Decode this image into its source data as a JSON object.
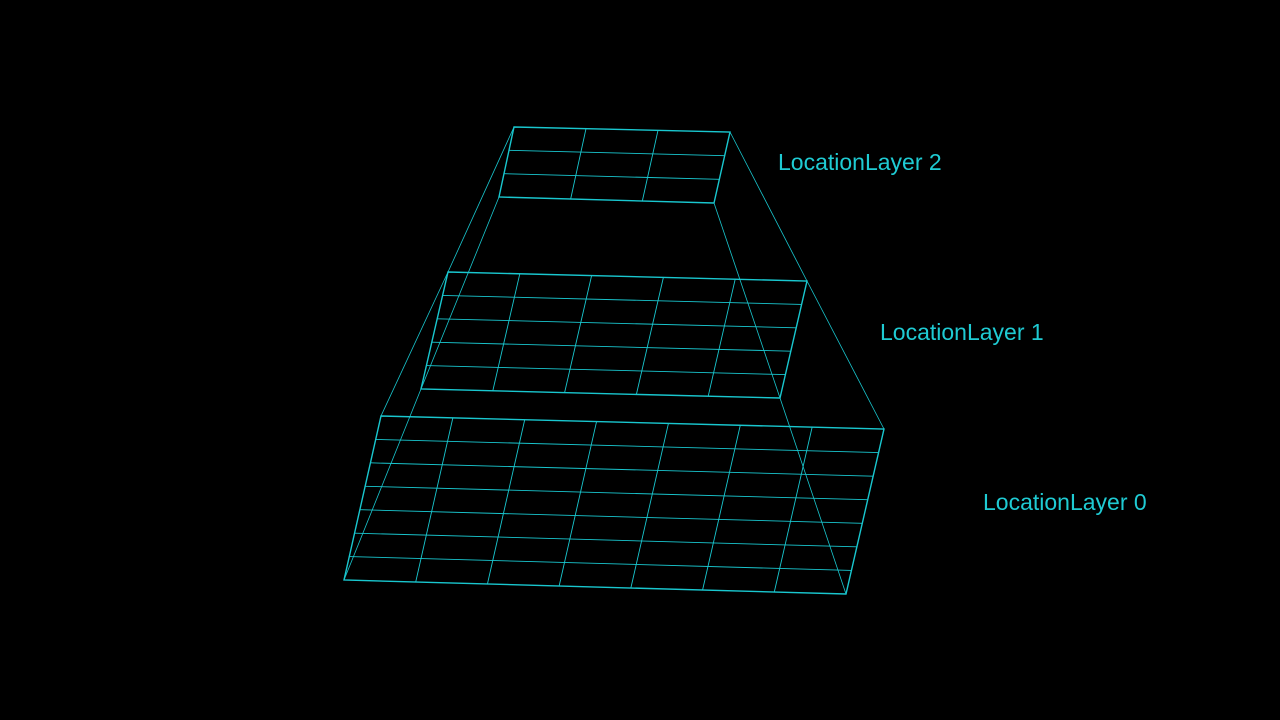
{
  "colors": {
    "background": "#000000",
    "line": "#19C7CF",
    "label": "#1FCBD3"
  },
  "layers": [
    {
      "label": "LocationLayer 2",
      "columns": 3,
      "rows": 3
    },
    {
      "label": "LocationLayer 1",
      "columns": 5,
      "rows": 5
    },
    {
      "label": "LocationLayer 0",
      "columns": 7,
      "rows": 7
    }
  ]
}
